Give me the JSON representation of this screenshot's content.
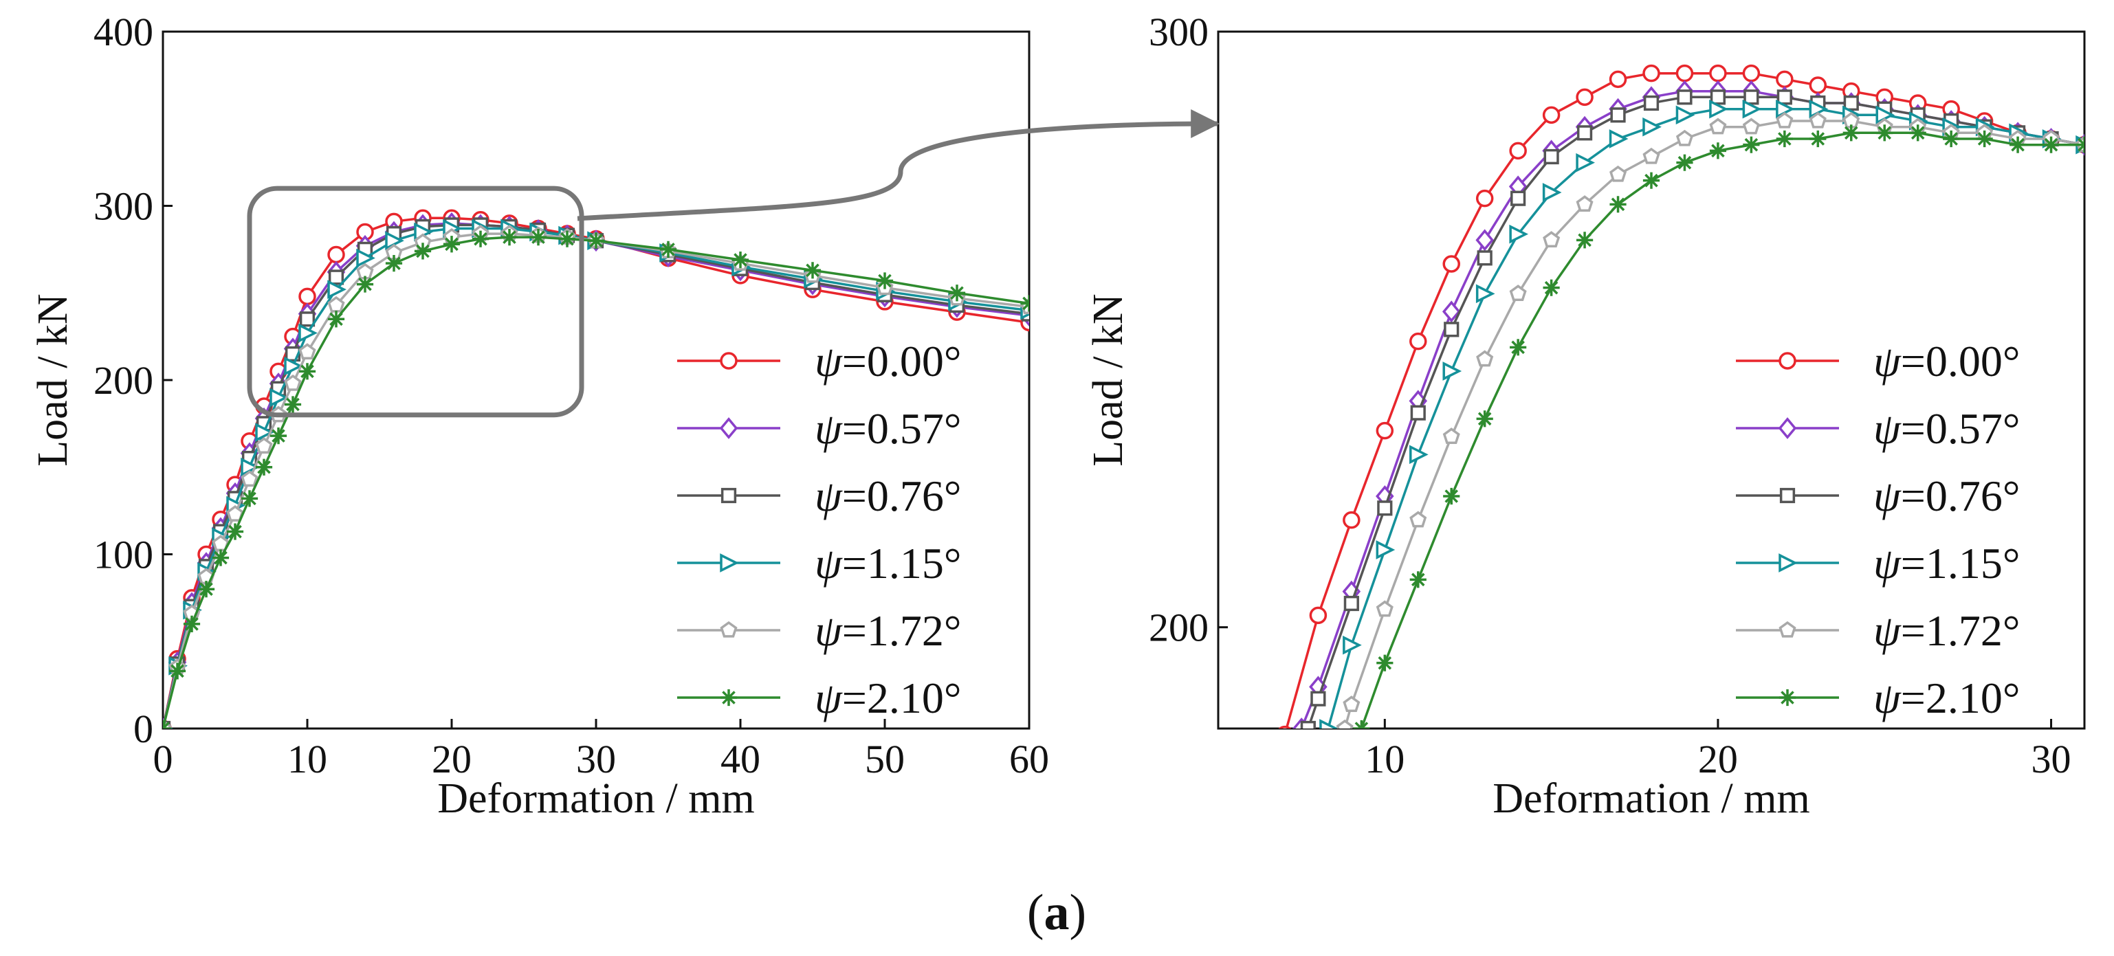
{
  "figure_caption": {
    "open": "(",
    "letter": "a",
    "close": ")"
  },
  "legend": {
    "symbol": "ψ",
    "entries": [
      "=0.00°",
      "=0.57°",
      "=0.76°",
      "=1.15°",
      "=1.72°",
      "=2.10°"
    ]
  },
  "chart_data": [
    {
      "type": "line",
      "title": "",
      "xlabel": "Deformation / mm",
      "ylabel": "Load / kN",
      "xlim": [
        0,
        60
      ],
      "ylim": [
        0,
        400
      ],
      "xticks": [
        0,
        10,
        20,
        30,
        40,
        50,
        60
      ],
      "yticks": [
        0,
        100,
        200,
        300,
        400
      ],
      "grid": false,
      "legend_position": "bottom-right",
      "zoom_box": {
        "x": [
          6,
          29
        ],
        "y": [
          180,
          310
        ]
      },
      "series": [
        {
          "name": "ψ=0.00°",
          "color": "#e8262c",
          "marker": "circle",
          "x": [
            0,
            1,
            2,
            3,
            4,
            5,
            6,
            7,
            8,
            9,
            10,
            12,
            14,
            16,
            18,
            20,
            22,
            24,
            26,
            28,
            30,
            35,
            40,
            45,
            50,
            55,
            60
          ],
          "y": [
            0,
            40,
            75,
            100,
            120,
            140,
            165,
            185,
            205,
            225,
            248,
            272,
            285,
            291,
            293,
            293,
            292,
            290,
            287,
            284,
            281,
            270,
            260,
            252,
            245,
            239,
            233
          ]
        },
        {
          "name": "ψ=0.57°",
          "color": "#8a3fc9",
          "marker": "diamond",
          "x": [
            0,
            1,
            2,
            3,
            4,
            5,
            6,
            7,
            8,
            9,
            10,
            12,
            14,
            16,
            18,
            20,
            22,
            24,
            26,
            28,
            30,
            35,
            40,
            45,
            50,
            55,
            60
          ],
          "y": [
            0,
            38,
            72,
            95,
            115,
            135,
            158,
            178,
            198,
            218,
            238,
            262,
            277,
            285,
            289,
            290,
            289,
            288,
            286,
            283,
            280,
            271,
            263,
            255,
            248,
            242,
            237
          ]
        },
        {
          "name": "ψ=0.76°",
          "color": "#555555",
          "marker": "square",
          "x": [
            0,
            1,
            2,
            3,
            4,
            5,
            6,
            7,
            8,
            9,
            10,
            12,
            14,
            16,
            18,
            20,
            22,
            24,
            26,
            28,
            30,
            35,
            40,
            45,
            50,
            55,
            60
          ],
          "y": [
            0,
            37,
            70,
            93,
            113,
            132,
            155,
            175,
            195,
            215,
            235,
            259,
            275,
            284,
            288,
            289,
            289,
            288,
            286,
            283,
            280,
            272,
            264,
            256,
            249,
            243,
            238
          ]
        },
        {
          "name": "ψ=1.15°",
          "color": "#15919a",
          "marker": "triangle-right",
          "x": [
            0,
            1,
            2,
            3,
            4,
            5,
            6,
            7,
            8,
            9,
            10,
            12,
            14,
            16,
            18,
            20,
            22,
            24,
            26,
            28,
            30,
            35,
            40,
            45,
            50,
            55,
            60
          ],
          "y": [
            0,
            36,
            68,
            90,
            110,
            128,
            150,
            170,
            190,
            208,
            227,
            252,
            270,
            280,
            285,
            287,
            287,
            287,
            285,
            283,
            280,
            273,
            265,
            258,
            251,
            245,
            240
          ]
        },
        {
          "name": "ψ=1.72°",
          "color": "#a9a9a9",
          "marker": "pentagon",
          "x": [
            0,
            1,
            2,
            3,
            4,
            5,
            6,
            7,
            8,
            9,
            10,
            12,
            14,
            16,
            18,
            20,
            22,
            24,
            26,
            28,
            30,
            35,
            40,
            45,
            50,
            55,
            60
          ],
          "y": [
            0,
            35,
            66,
            87,
            106,
            123,
            143,
            162,
            180,
            198,
            216,
            243,
            262,
            273,
            279,
            282,
            284,
            284,
            283,
            282,
            280,
            274,
            267,
            260,
            253,
            247,
            242
          ]
        },
        {
          "name": "ψ=2.10°",
          "color": "#2e8b2e",
          "marker": "asterisk",
          "x": [
            0,
            1,
            2,
            3,
            4,
            5,
            6,
            7,
            8,
            9,
            10,
            12,
            14,
            16,
            18,
            20,
            22,
            24,
            26,
            28,
            30,
            35,
            40,
            45,
            50,
            55,
            60
          ],
          "y": [
            0,
            33,
            60,
            80,
            98,
            113,
            132,
            150,
            168,
            186,
            205,
            235,
            255,
            267,
            274,
            278,
            281,
            282,
            282,
            281,
            280,
            275,
            269,
            263,
            257,
            250,
            244
          ]
        }
      ]
    },
    {
      "type": "line",
      "title": "",
      "xlabel": "Deformation / mm",
      "ylabel": "Load / kN",
      "xlim": [
        5,
        31
      ],
      "ylim": [
        183,
        300
      ],
      "xticks": [
        10,
        20,
        30
      ],
      "yticks": [
        200,
        300
      ],
      "grid": false,
      "legend_position": "bottom-right",
      "series": [
        {
          "name": "ψ=0.00°",
          "color": "#e8262c",
          "marker": "circle",
          "x": [
            7,
            8,
            9,
            10,
            11,
            12,
            13,
            14,
            15,
            16,
            17,
            18,
            19,
            20,
            21,
            22,
            23,
            24,
            25,
            26,
            27,
            28,
            29,
            30,
            31
          ],
          "y": [
            182,
            202,
            218,
            233,
            248,
            261,
            272,
            280,
            286,
            289,
            292,
            293,
            293,
            293,
            293,
            292,
            291,
            290,
            289,
            288,
            287,
            285,
            283,
            282,
            281
          ]
        },
        {
          "name": "ψ=0.57°",
          "color": "#8a3fc9",
          "marker": "diamond",
          "x": [
            7.5,
            8,
            9,
            10,
            11,
            12,
            13,
            14,
            15,
            16,
            17,
            18,
            19,
            20,
            21,
            22,
            23,
            24,
            25,
            26,
            27,
            28,
            29,
            30,
            31
          ],
          "y": [
            183,
            190,
            206,
            222,
            238,
            253,
            265,
            274,
            280,
            284,
            287,
            289,
            290,
            290,
            290,
            289,
            288,
            288,
            287,
            286,
            285,
            284,
            283,
            282,
            281
          ]
        },
        {
          "name": "ψ=0.76°",
          "color": "#555555",
          "marker": "square",
          "x": [
            7.7,
            8,
            9,
            10,
            11,
            12,
            13,
            14,
            15,
            16,
            17,
            18,
            19,
            20,
            21,
            22,
            23,
            24,
            25,
            26,
            27,
            28,
            29,
            30,
            31
          ],
          "y": [
            183,
            188,
            204,
            220,
            236,
            250,
            262,
            272,
            279,
            283,
            286,
            288,
            289,
            289,
            289,
            289,
            288,
            288,
            287,
            286,
            285,
            284,
            283,
            282,
            281
          ]
        },
        {
          "name": "ψ=1.15°",
          "color": "#15919a",
          "marker": "triangle-right",
          "x": [
            8.3,
            9,
            10,
            11,
            12,
            13,
            14,
            15,
            16,
            17,
            18,
            19,
            20,
            21,
            22,
            23,
            24,
            25,
            26,
            27,
            28,
            29,
            30,
            31
          ],
          "y": [
            183,
            197,
            213,
            229,
            243,
            256,
            266,
            273,
            278,
            282,
            284,
            286,
            287,
            287,
            287,
            287,
            286,
            286,
            285,
            284,
            284,
            283,
            282,
            281
          ]
        },
        {
          "name": "ψ=1.72°",
          "color": "#a9a9a9",
          "marker": "pentagon",
          "x": [
            8.8,
            9,
            10,
            11,
            12,
            13,
            14,
            15,
            16,
            17,
            18,
            19,
            20,
            21,
            22,
            23,
            24,
            25,
            26,
            27,
            28,
            29,
            30,
            31
          ],
          "y": [
            183,
            187,
            203,
            218,
            232,
            245,
            256,
            265,
            271,
            276,
            279,
            282,
            284,
            284,
            285,
            285,
            285,
            284,
            284,
            283,
            283,
            282,
            282,
            281
          ]
        },
        {
          "name": "ψ=2.10°",
          "color": "#2e8b2e",
          "marker": "asterisk",
          "x": [
            9.3,
            10,
            11,
            12,
            13,
            14,
            15,
            16,
            17,
            18,
            19,
            20,
            21,
            22,
            23,
            24,
            25,
            26,
            27,
            28,
            29,
            30,
            31
          ],
          "y": [
            183,
            194,
            208,
            222,
            235,
            247,
            257,
            265,
            271,
            275,
            278,
            280,
            281,
            282,
            282,
            283,
            283,
            283,
            282,
            282,
            281,
            281,
            281
          ]
        }
      ]
    }
  ]
}
